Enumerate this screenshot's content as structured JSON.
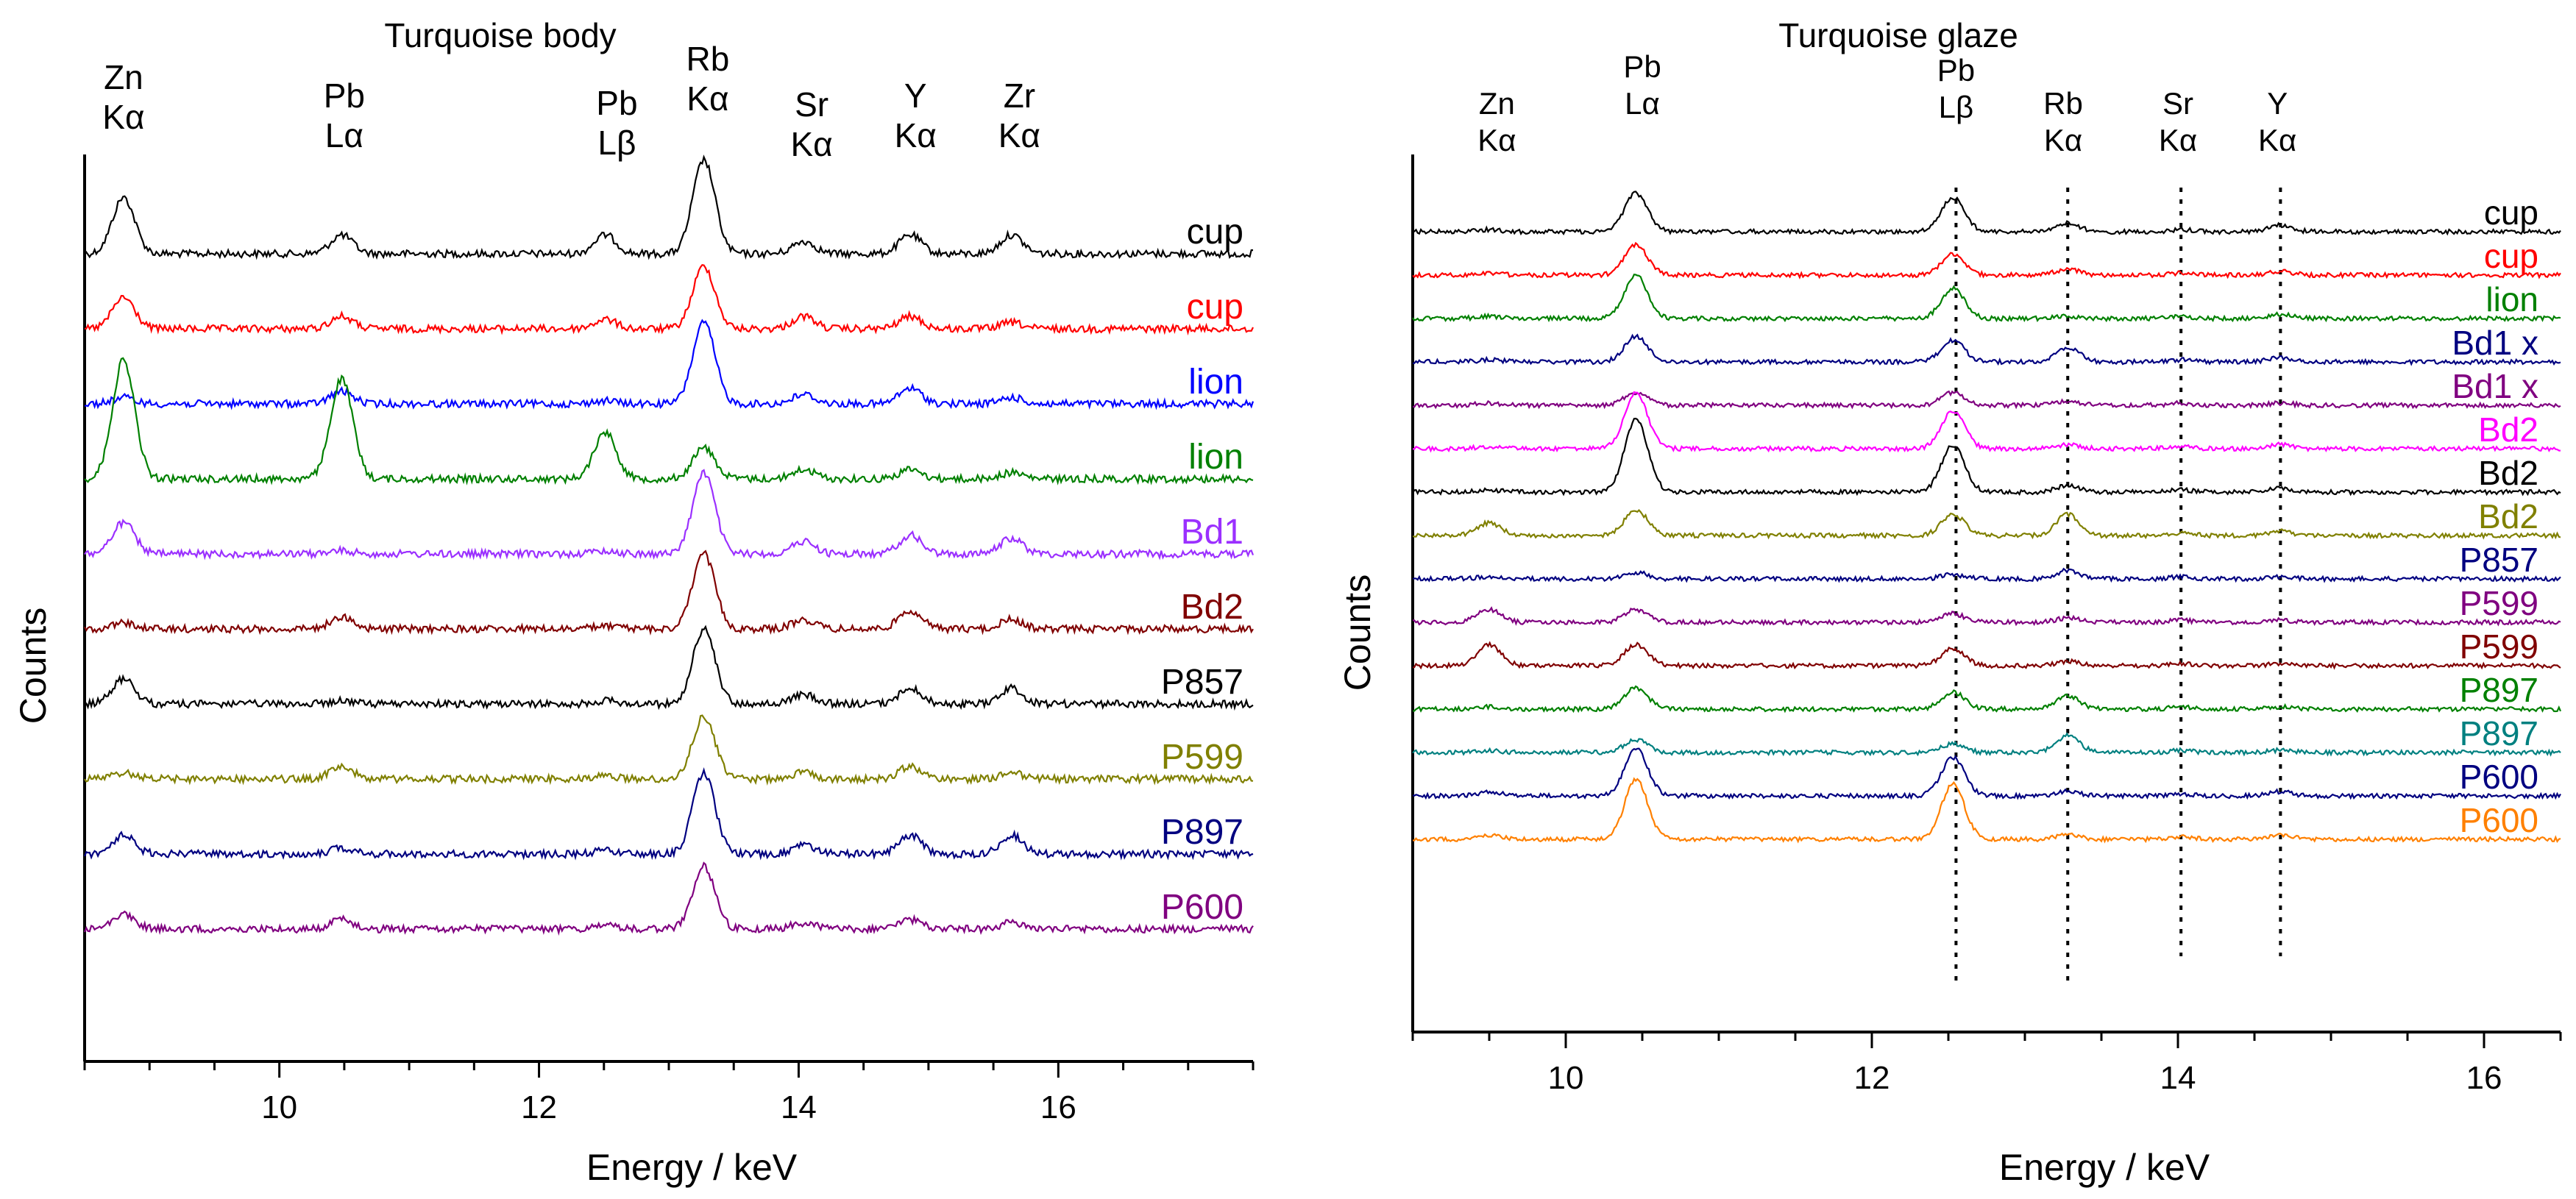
{
  "chart_data": [
    {
      "type": "line",
      "title": "Turquoise body",
      "xlabel": "Energy / keV",
      "ylabel": "Counts",
      "xlim": [
        8.5,
        17.5
      ],
      "x_ticks": [
        10,
        12,
        14,
        16
      ],
      "peak_labels": [
        {
          "element": "Zn",
          "line": "Kα",
          "energy": 8.8
        },
        {
          "element": "Pb",
          "line": "Lα",
          "energy": 10.5
        },
        {
          "element": "Pb",
          "line": "Lβ",
          "energy": 12.6
        },
        {
          "element": "Rb",
          "line": "Kα",
          "energy": 13.3
        },
        {
          "element": "Sr",
          "line": "Kα",
          "energy": 14.1
        },
        {
          "element": "Y",
          "line": "Kα",
          "energy": 14.9
        },
        {
          "element": "Zr",
          "line": "Kα",
          "energy": 15.7
        }
      ],
      "series": [
        {
          "name": "cup",
          "color": "#000000",
          "peaks": {
            "Zn": 0.9,
            "PbLa": 0.3,
            "PbLb": 0.3,
            "Rb": 1.5,
            "Sr": 0.2,
            "Y": 0.3,
            "Zr": 0.3
          }
        },
        {
          "name": "cup",
          "color": "#ff0000",
          "peaks": {
            "Zn": 0.5,
            "PbLa": 0.2,
            "PbLb": 0.15,
            "Rb": 1.0,
            "Sr": 0.2,
            "Y": 0.2,
            "Zr": 0.1
          }
        },
        {
          "name": "lion",
          "color": "#0000ff",
          "peaks": {
            "Zn": 0.1,
            "PbLa": 0.2,
            "PbLb": 0.05,
            "Rb": 1.3,
            "Sr": 0.15,
            "Y": 0.25,
            "Zr": 0.1
          }
        },
        {
          "name": "lion",
          "color": "#008000",
          "peaks": {
            "Zn": 1.9,
            "PbLa": 1.6,
            "PbLb": 0.75,
            "Rb": 0.5,
            "Sr": 0.15,
            "Y": 0.15,
            "Zr": 0.1
          }
        },
        {
          "name": "Bd1",
          "color": "#9b30ff",
          "peaks": {
            "Zn": 0.5,
            "PbLa": 0.05,
            "PbLb": 0.05,
            "Rb": 1.3,
            "Sr": 0.2,
            "Y": 0.3,
            "Zr": 0.25
          }
        },
        {
          "name": "Bd2",
          "color": "#800000",
          "peaks": {
            "Zn": 0.1,
            "PbLa": 0.2,
            "PbLb": 0.05,
            "Rb": 1.2,
            "Sr": 0.15,
            "Y": 0.3,
            "Zr": 0.15
          }
        },
        {
          "name": "P857",
          "color": "#000000",
          "peaks": {
            "Zn": 0.4,
            "PbLa": 0.05,
            "PbLb": 0.05,
            "Rb": 1.2,
            "Sr": 0.15,
            "Y": 0.25,
            "Zr": 0.25
          }
        },
        {
          "name": "P599",
          "color": "#808000",
          "peaks": {
            "Zn": 0.1,
            "PbLa": 0.2,
            "PbLb": 0.05,
            "Rb": 1.0,
            "Sr": 0.1,
            "Y": 0.2,
            "Zr": 0.1
          }
        },
        {
          "name": "P897",
          "color": "#000080",
          "peaks": {
            "Zn": 0.3,
            "PbLa": 0.1,
            "PbLb": 0.05,
            "Rb": 1.3,
            "Sr": 0.15,
            "Y": 0.3,
            "Zr": 0.3
          }
        },
        {
          "name": "P600",
          "color": "#800080",
          "peaks": {
            "Zn": 0.25,
            "PbLa": 0.15,
            "PbLb": 0.05,
            "Rb": 1.0,
            "Sr": 0.1,
            "Y": 0.15,
            "Zr": 0.1
          }
        }
      ]
    },
    {
      "type": "line",
      "title": "Turquoise glaze",
      "xlabel": "Energy / keV",
      "ylabel": "Counts",
      "xlim": [
        9.0,
        16.5
      ],
      "x_ticks": [
        10,
        12,
        14,
        16
      ],
      "peak_labels": [
        {
          "element": "Zn",
          "line": "Kα",
          "energy": 9.55
        },
        {
          "element": "Pb",
          "line": "Lα",
          "energy": 10.5
        },
        {
          "element": "Pb",
          "line": "Lβ",
          "energy": 12.55
        },
        {
          "element": "Rb",
          "line": "Kα",
          "energy": 13.25
        },
        {
          "element": "Sr",
          "line": "Kα",
          "energy": 14.0
        },
        {
          "element": "Y",
          "line": "Kα",
          "energy": 14.65
        }
      ],
      "reference_lines": [
        12.55,
        13.28,
        14.02,
        14.67
      ],
      "series": [
        {
          "name": "cup",
          "color": "#000000",
          "peaks": {
            "Zn": 0.05,
            "PbLa": 0.9,
            "PbLb": 0.8,
            "Rb": 0.2,
            "Sr": 0.05,
            "Y": 0.15
          }
        },
        {
          "name": "cup",
          "color": "#ff0000",
          "peaks": {
            "Zn": 0.05,
            "PbLa": 0.7,
            "PbLb": 0.5,
            "Rb": 0.15,
            "Sr": 0.05,
            "Y": 0.1
          }
        },
        {
          "name": "lion",
          "color": "#008000",
          "peaks": {
            "Zn": 0.05,
            "PbLa": 1.0,
            "PbLb": 0.7,
            "Rb": 0.05,
            "Sr": 0.05,
            "Y": 0.1
          }
        },
        {
          "name": "Bd1 x",
          "color": "#000080",
          "peaks": {
            "Zn": 0.05,
            "PbLa": 0.6,
            "PbLb": 0.5,
            "Rb": 0.35,
            "Sr": 0.05,
            "Y": 0.1
          }
        },
        {
          "name": "Bd1 x",
          "color": "#800080",
          "peaks": {
            "Zn": 0.05,
            "PbLa": 0.3,
            "PbLb": 0.3,
            "Rb": 0.1,
            "Sr": 0.05,
            "Y": 0.05
          }
        },
        {
          "name": "Bd2",
          "color": "#ff00ff",
          "peaks": {
            "Zn": 0.05,
            "PbLa": 1.3,
            "PbLb": 0.9,
            "Rb": 0.1,
            "Sr": 0.05,
            "Y": 0.1
          }
        },
        {
          "name": "Bd2",
          "color": "#000000",
          "peaks": {
            "Zn": 0.05,
            "PbLa": 1.7,
            "PbLb": 1.1,
            "Rb": 0.15,
            "Sr": 0.05,
            "Y": 0.1
          }
        },
        {
          "name": "Bd2",
          "color": "#808000",
          "peaks": {
            "Zn": 0.3,
            "PbLa": 0.6,
            "PbLb": 0.5,
            "Rb": 0.5,
            "Sr": 0.05,
            "Y": 0.1
          }
        },
        {
          "name": "P857",
          "color": "#000080",
          "peaks": {
            "Zn": 0.05,
            "PbLa": 0.15,
            "PbLb": 0.1,
            "Rb": 0.2,
            "Sr": 0.05,
            "Y": 0.05
          }
        },
        {
          "name": "P599",
          "color": "#800080",
          "peaks": {
            "Zn": 0.3,
            "PbLa": 0.3,
            "PbLb": 0.2,
            "Rb": 0.1,
            "Sr": 0.05,
            "Y": 0.05
          }
        },
        {
          "name": "P599",
          "color": "#800000",
          "peaks": {
            "Zn": 0.5,
            "PbLa": 0.5,
            "PbLb": 0.4,
            "Rb": 0.1,
            "Sr": 0.05,
            "Y": 0.05
          }
        },
        {
          "name": "P897",
          "color": "#008000",
          "peaks": {
            "Zn": 0.05,
            "PbLa": 0.5,
            "PbLb": 0.4,
            "Rb": 0.3,
            "Sr": 0.05,
            "Y": 0.05
          }
        },
        {
          "name": "P897",
          "color": "#008080",
          "peaks": {
            "Zn": 0.05,
            "PbLa": 0.3,
            "PbLb": 0.2,
            "Rb": 0.4,
            "Sr": 0.05,
            "Y": 0.05
          }
        },
        {
          "name": "P600",
          "color": "#000080",
          "peaks": {
            "Zn": 0.1,
            "PbLa": 1.1,
            "PbLb": 0.9,
            "Rb": 0.1,
            "Sr": 0.05,
            "Y": 0.1
          }
        },
        {
          "name": "P600",
          "color": "#ff8000",
          "peaks": {
            "Zn": 0.1,
            "PbLa": 1.4,
            "PbLb": 1.3,
            "Rb": 0.1,
            "Sr": 0.05,
            "Y": 0.1
          }
        }
      ]
    }
  ]
}
